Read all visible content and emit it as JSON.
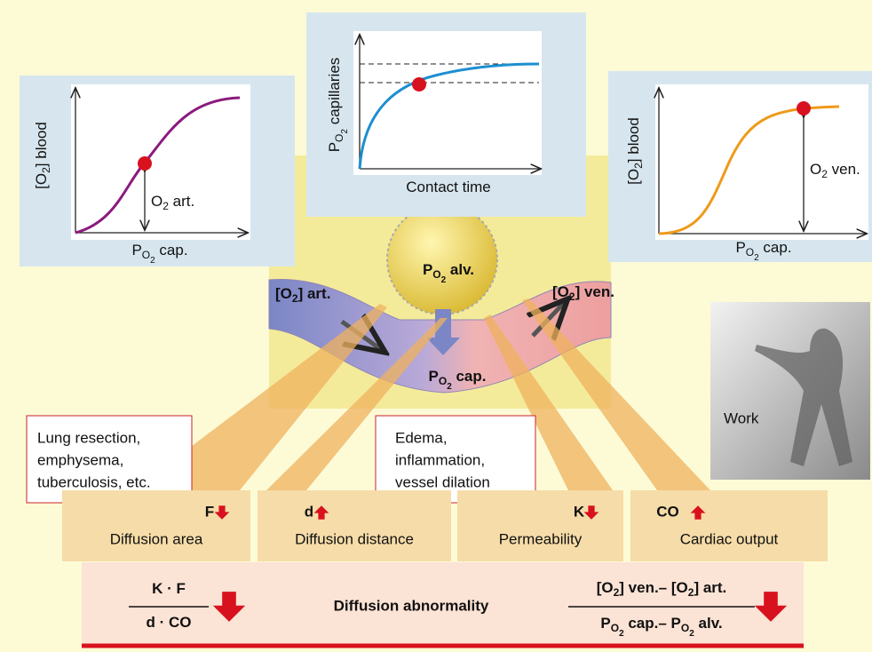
{
  "left_graph": {
    "y_label": [
      [
        "[O",
        0
      ],
      [
        "2",
        1
      ],
      [
        "] blood",
        0
      ]
    ],
    "x_label": [
      [
        "P",
        0
      ],
      [
        "O",
        1
      ],
      [
        "2",
        2
      ],
      [
        " cap.",
        0
      ]
    ],
    "point_label": [
      [
        "O",
        0
      ],
      [
        "2",
        1
      ],
      [
        " art.",
        0
      ]
    ]
  },
  "middle_graph": {
    "y_label": [
      [
        "P",
        0
      ],
      [
        "O",
        1
      ],
      [
        "2",
        2
      ],
      [
        " capillaries",
        0
      ]
    ],
    "x_label": [
      [
        "Contact time",
        0
      ]
    ]
  },
  "right_graph": {
    "y_label": [
      [
        "[O",
        0
      ],
      [
        "2",
        1
      ],
      [
        "] blood",
        0
      ]
    ],
    "x_label": [
      [
        "P",
        0
      ],
      [
        "O",
        1
      ],
      [
        "2",
        2
      ],
      [
        " cap.",
        0
      ]
    ],
    "point_label": [
      [
        "O",
        0
      ],
      [
        "2",
        1
      ],
      [
        " ven.",
        0
      ]
    ]
  },
  "alveolus": {
    "alveolar_label": [
      [
        "P",
        0
      ],
      [
        "O",
        1
      ],
      [
        "2",
        2
      ],
      [
        " alv.",
        0
      ]
    ],
    "arterial_label": [
      [
        "[O",
        0
      ],
      [
        "2",
        1
      ],
      [
        "] art.",
        0
      ]
    ],
    "venous_label": [
      [
        "[O",
        0
      ],
      [
        "2",
        1
      ],
      [
        "] ven.",
        0
      ]
    ],
    "capillary_label": [
      [
        "P",
        0
      ],
      [
        "O",
        1
      ],
      [
        "2",
        2
      ],
      [
        " cap.",
        0
      ]
    ]
  },
  "causes": {
    "lung": [
      "Lung resection,",
      "emphysema,",
      "tuberculosis, etc."
    ],
    "edema": [
      "Edema,",
      "inflammation,",
      "vessel dilation"
    ]
  },
  "work_label": "Work",
  "factors": [
    {
      "symbol": "F",
      "name": "Diffusion area",
      "direction": "down"
    },
    {
      "symbol": "d",
      "name": "Diffusion distance",
      "direction": "up"
    },
    {
      "symbol": "K",
      "name": "Permeability",
      "direction": "down"
    },
    {
      "symbol": "CO",
      "name": "Cardiac output",
      "direction": "up"
    }
  ],
  "summary": {
    "title": "Diffusion abnormality",
    "left_numerator": [
      [
        "K · F",
        0
      ]
    ],
    "left_denominator": [
      [
        "d · CO",
        0
      ]
    ],
    "left_direction": "down",
    "right_numerator": [
      [
        "[O",
        0
      ],
      [
        "2",
        1
      ],
      [
        "] ven.– [O",
        0
      ],
      [
        "2",
        1
      ],
      [
        "] art.",
        0
      ]
    ],
    "right_denominator": [
      [
        "P",
        0
      ],
      [
        "O",
        1
      ],
      [
        "2",
        2
      ],
      [
        " cap.– P",
        0
      ],
      [
        "O",
        1
      ],
      [
        "2",
        2
      ],
      [
        " alv.",
        0
      ]
    ],
    "right_direction": "down"
  }
}
